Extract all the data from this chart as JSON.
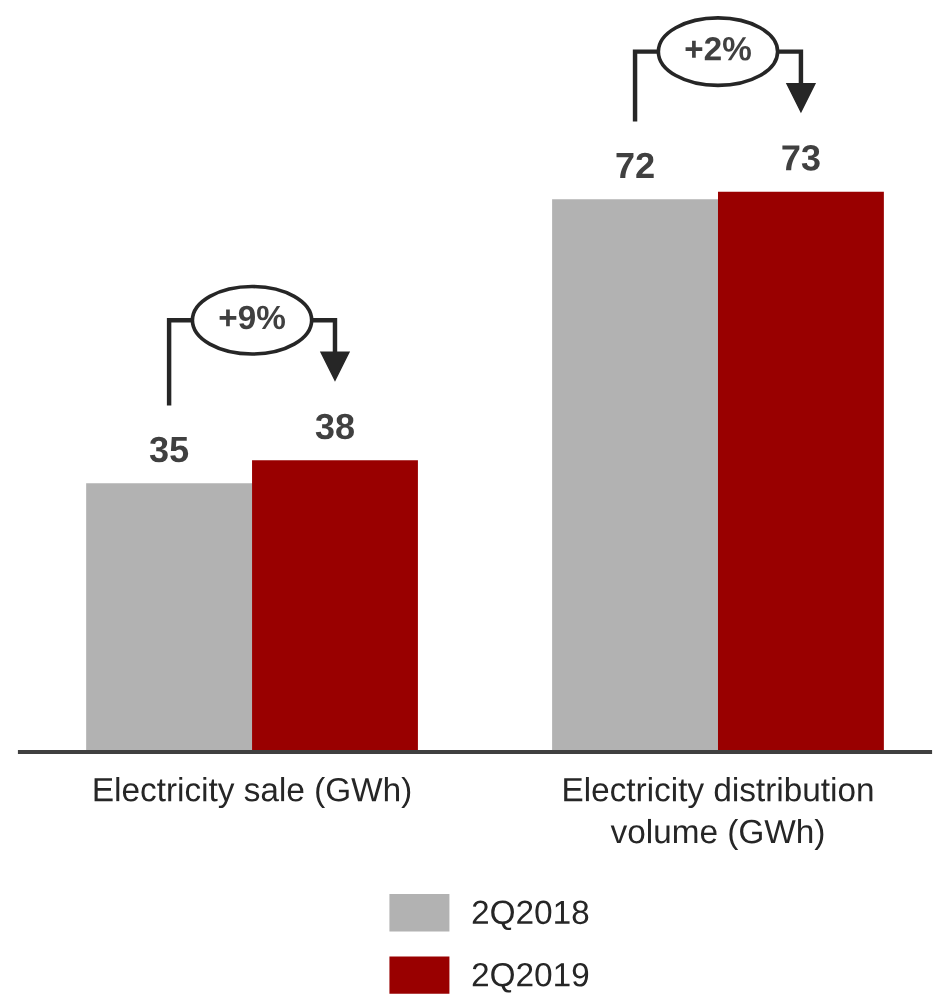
{
  "chart_data": {
    "type": "bar",
    "categories": [
      "Electricity sale (GWh)",
      "Electricity distribution volume (GWh)"
    ],
    "series": [
      {
        "name": "2Q2018",
        "color": "#b2b2b2",
        "values": [
          35,
          72
        ]
      },
      {
        "name": "2Q2019",
        "color": "#990000",
        "values": [
          38,
          73
        ]
      }
    ],
    "data_labels": true,
    "legend": "bottom",
    "tick_labels": "x",
    "annotations": [
      "+9%",
      "+2%"
    ]
  }
}
